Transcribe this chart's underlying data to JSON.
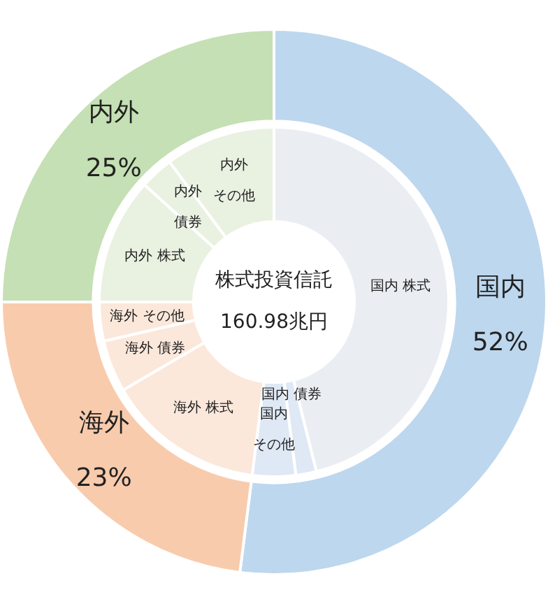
{
  "chart_data": [
    {
      "type": "donut",
      "categories": [
        "国内",
        "海外",
        "内外"
      ],
      "values": [
        52,
        23,
        25
      ],
      "colors": [
        "#bdd7ee",
        "#f8cbad",
        "#c5e0b4"
      ],
      "value_labels": [
        "52%",
        "23%",
        "25%"
      ]
    },
    {
      "type": "donut",
      "categories": [
        "国内 株式",
        "国内 債券",
        "国内その他",
        "海外 株式",
        "海外 債券",
        "海外 その他",
        "内外 株式",
        "内外債券",
        "内外その他"
      ],
      "values": [
        46.1,
        1.9,
        4.0,
        14.6,
        4.8,
        3.6,
        11.7,
        3.1,
        10.2
      ],
      "colors": [
        "#eaeef3",
        "#dfe9f5",
        "#dfe9f5",
        "#fbe8db",
        "#fbe8db",
        "#fbe8db",
        "#e9f1e1",
        "#e9f1e1",
        "#e9f1e1"
      ],
      "annotations": [
        "株式投資信託",
        "160.98兆円"
      ]
    }
  ]
}
